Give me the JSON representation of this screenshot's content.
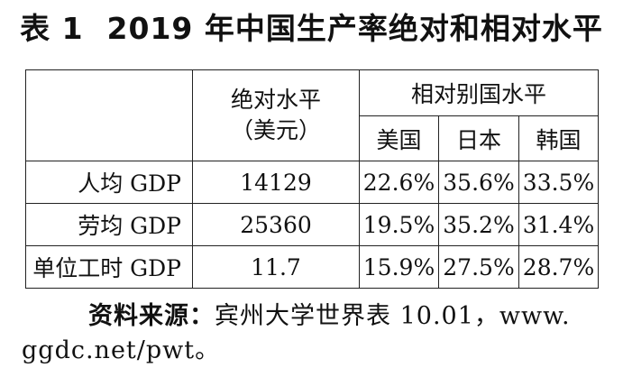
{
  "title": {
    "number": "表 1",
    "text": "2019 年中国生产率绝对和相对水平"
  },
  "table": {
    "header": {
      "absolute": "绝对水平",
      "absolute_unit": "（美元）",
      "relative": "相对别国水平",
      "countries": [
        "美国",
        "日本",
        "韩国"
      ]
    },
    "rows": [
      {
        "label": "人均 GDP",
        "absolute": "14129",
        "us": "22.6%",
        "jp": "35.6%",
        "kr": "33.5%"
      },
      {
        "label": "劳均 GDP",
        "absolute": "25360",
        "us": "19.5%",
        "jp": "35.2%",
        "kr": "31.4%"
      },
      {
        "label": "单位工时 GDP",
        "absolute": "11.7",
        "us": "15.9%",
        "jp": "27.5%",
        "kr": "28.7%"
      }
    ]
  },
  "source": {
    "label": "资料来源：",
    "text_line1": "宾州大学世界表 10.01，www.",
    "text_line2": "ggdc.net/pwt。"
  }
}
